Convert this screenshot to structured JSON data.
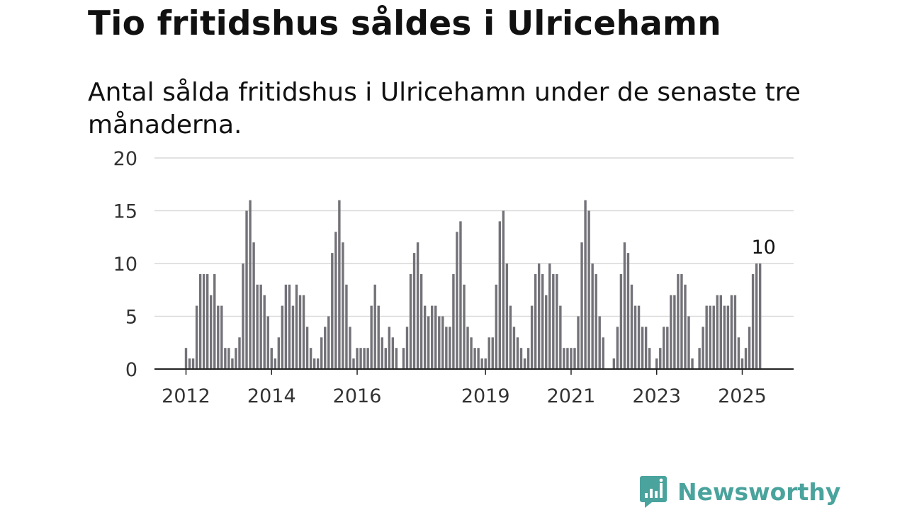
{
  "header": {
    "title": "Tio fritidshus såldes i Ulricehamn",
    "subtitle": "Antal sålda fritidshus i Ulricehamn under de senaste tre månaderna."
  },
  "brand": {
    "name": "Newsworthy",
    "icon": "newsworthy-logo-icon",
    "color": "#4aa39d"
  },
  "colors": {
    "bar": "#737278",
    "highlight": "#1a9a95",
    "grid": "#d9d9d9",
    "axis": "#222222"
  },
  "chart_data": {
    "type": "bar",
    "title": "Tio fritidshus såldes i Ulricehamn",
    "subtitle": "Antal sålda fritidshus i Ulricehamn under de senaste tre månaderna.",
    "xlabel": "",
    "ylabel": "",
    "ylim": [
      0,
      20
    ],
    "yticks": [
      0,
      5,
      10,
      15,
      20
    ],
    "xticks": [
      {
        "label": "2012",
        "date": "2012-01"
      },
      {
        "label": "2014",
        "date": "2014-01"
      },
      {
        "label": "2016",
        "date": "2016-01"
      },
      {
        "label": "2019",
        "date": "2019-01"
      },
      {
        "label": "2021",
        "date": "2021-01"
      },
      {
        "label": "2023",
        "date": "2023-01"
      },
      {
        "label": "2025",
        "date": "2025-01"
      }
    ],
    "grid": true,
    "start": "2012-01",
    "values": [
      2,
      1,
      1,
      6,
      9,
      9,
      9,
      7,
      9,
      6,
      6,
      2,
      2,
      1,
      2,
      3,
      10,
      15,
      16,
      12,
      8,
      8,
      7,
      5,
      2,
      1,
      3,
      6,
      8,
      8,
      6,
      8,
      7,
      7,
      4,
      2,
      1,
      1,
      3,
      4,
      5,
      11,
      13,
      16,
      12,
      8,
      4,
      1,
      2,
      2,
      2,
      2,
      6,
      8,
      6,
      3,
      2,
      4,
      3,
      2,
      0,
      2,
      4,
      9,
      11,
      12,
      9,
      6,
      5,
      6,
      6,
      5,
      5,
      4,
      4,
      9,
      13,
      14,
      8,
      4,
      3,
      2,
      2,
      1,
      1,
      3,
      3,
      8,
      14,
      15,
      10,
      6,
      4,
      3,
      2,
      1,
      2,
      6,
      9,
      10,
      9,
      7,
      10,
      9,
      9,
      6,
      2,
      2,
      2,
      2,
      5,
      12,
      16,
      15,
      10,
      9,
      5,
      3,
      0,
      0,
      1,
      4,
      9,
      12,
      11,
      8,
      6,
      6,
      4,
      4,
      2,
      0,
      1,
      2,
      4,
      4,
      7,
      7,
      9,
      9,
      8,
      5,
      1,
      0,
      2,
      4,
      6,
      6,
      6,
      7,
      7,
      6,
      6,
      7,
      7,
      3,
      1,
      2,
      4,
      9,
      10,
      10
    ],
    "highlight_index": 162,
    "annotation": {
      "label": "10",
      "value": 10
    }
  }
}
